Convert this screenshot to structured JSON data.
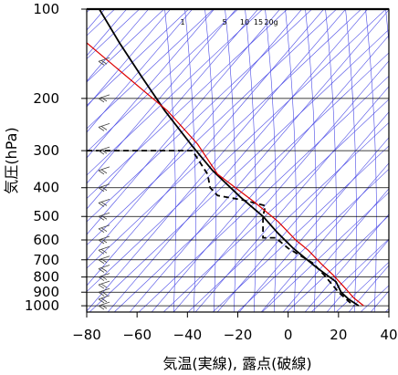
{
  "chart_data": {
    "type": "line",
    "title": "",
    "xlabel": "気温(実線), 露点(破線)",
    "ylabel": "気圧(hPa)",
    "xlim": [
      -80,
      40
    ],
    "ylim_hPa": [
      1050,
      100
    ],
    "y_scale": "log",
    "grid": true,
    "x_ticks": [
      -80,
      -60,
      -40,
      -20,
      0,
      20,
      40
    ],
    "x_tick_labels": [
      "−80",
      "−60",
      "−40",
      "−20",
      "0",
      "20",
      "40"
    ],
    "y_ticks": [
      100,
      200,
      300,
      400,
      500,
      600,
      700,
      800,
      900,
      1000
    ],
    "y_tick_labels": [
      "100",
      "200",
      "300",
      "400",
      "500",
      "600",
      "700",
      "800",
      "900",
      "1000"
    ],
    "mixing_ratio_labels": [
      {
        "text": "1",
        "w": 1
      },
      {
        "text": "5",
        "w": 5
      },
      {
        "text": "10",
        "w": 10
      },
      {
        "text": "15",
        "w": 15
      },
      {
        "text": "20g",
        "w": 20
      }
    ],
    "series": [
      {
        "style": "solid",
        "color": "#000000",
        "points": [
          [
            -75,
            100
          ],
          [
            -67,
            130
          ],
          [
            -58,
            170
          ],
          [
            -49,
            220
          ],
          [
            -38,
            290
          ],
          [
            -30,
            350
          ],
          [
            -19,
            430
          ],
          [
            -10,
            500
          ],
          [
            -4,
            570
          ],
          [
            2,
            640
          ],
          [
            11,
            740
          ],
          [
            19,
            830
          ],
          [
            21,
            900
          ],
          [
            24,
            950
          ],
          [
            28,
            1000
          ]
        ]
      },
      {
        "style": "dashed",
        "color": "#000000",
        "points": [
          [
            -80,
            300
          ],
          [
            -38,
            300
          ],
          [
            -32,
            360
          ],
          [
            -31,
            400
          ],
          [
            -28,
            425
          ],
          [
            -18,
            440
          ],
          [
            -9,
            460
          ],
          [
            -10,
            500
          ],
          [
            -10,
            590
          ],
          [
            -5,
            590
          ],
          [
            0,
            640
          ],
          [
            10,
            720
          ],
          [
            15,
            800
          ],
          [
            20,
            900
          ],
          [
            26,
            1000
          ]
        ]
      },
      {
        "style": "solid",
        "color": "#dd0000",
        "points": [
          [
            -80,
            130
          ],
          [
            -48,
            220
          ],
          [
            -36,
            285
          ],
          [
            -28,
            360
          ],
          [
            -13,
            450
          ],
          [
            -4,
            520
          ],
          [
            3,
            600
          ],
          [
            8,
            650
          ],
          [
            13,
            720
          ],
          [
            18,
            790
          ],
          [
            22,
            860
          ],
          [
            26,
            940
          ],
          [
            30,
            1000
          ]
        ]
      }
    ],
    "colors": {
      "grid": "#000000",
      "isotherms": "#4a4ae6",
      "temperature": "#000000",
      "dewpoint": "#000000",
      "reference": "#dd0000",
      "wind_barbs": "#444444"
    },
    "wind_barbs_note_levels_hPa": [
      150,
      200,
      250,
      300,
      350,
      400,
      450,
      500,
      550,
      600,
      650,
      700,
      750,
      800,
      850,
      900,
      950,
      1000
    ]
  }
}
